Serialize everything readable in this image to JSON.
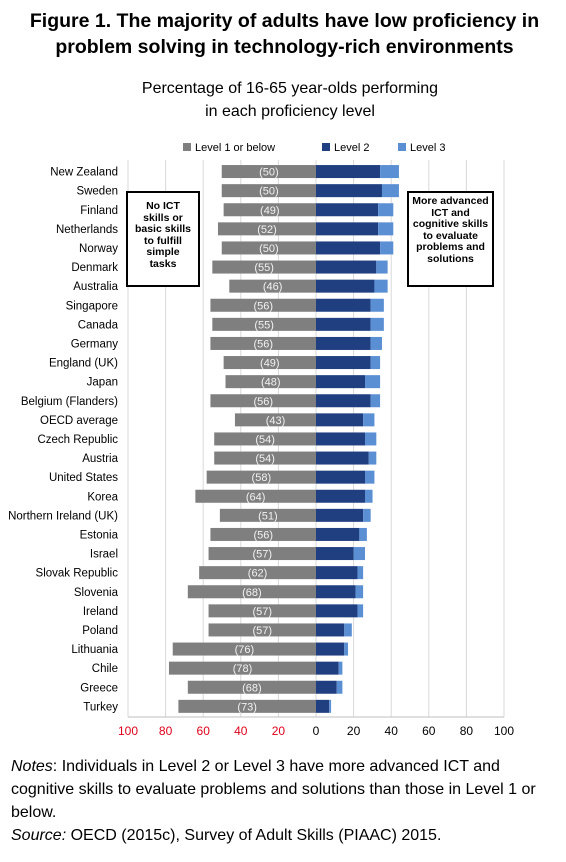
{
  "title": "Figure 1. The majority of adults have low proficiency in problem solving in technology-rich environments",
  "subtitle_line1": "Percentage of 16-65 year-olds performing",
  "subtitle_line2": "in each proficiency level",
  "callouts": {
    "left": "No ICT skills or basic skills to fulfill simple tasks",
    "right": "More advanced ICT and cognitive skills to evaluate problems and solutions"
  },
  "notes": {
    "label": "Notes",
    "text": ": Individuals in Level 2 or Level 3 have more advanced ICT and cognitive skills to evaluate problems and solutions than those in Level 1 or below."
  },
  "source": {
    "label": "Source:",
    "text": " OECD (2015c), Survey of Adult Skills (PIAAC) 2015."
  },
  "colors": {
    "level1": "#7f7f7f",
    "level2": "#1f3f80",
    "level3": "#5b8fd4",
    "left_ticks": "#e0001b"
  },
  "chart_data": {
    "type": "bar",
    "orientation": "horizontal-diverging",
    "categories": [
      "New Zealand",
      "Sweden",
      "Finland",
      "Netherlands",
      "Norway",
      "Denmark",
      "Australia",
      "Singapore",
      "Canada",
      "Germany",
      "England (UK)",
      "Japan",
      "Belgium (Flanders)",
      "OECD average",
      "Czech Republic",
      "Austria",
      "United States",
      "Korea",
      "Northern Ireland (UK)",
      "Estonia",
      "Israel",
      "Slovak Republic",
      "Slovenia",
      "Ireland",
      "Poland",
      "Lithuania",
      "Chile",
      "Greece",
      "Turkey"
    ],
    "series": [
      {
        "name": "Level 1 or below",
        "side": "left",
        "values": [
          50,
          50,
          49,
          52,
          50,
          55,
          46,
          56,
          55,
          56,
          49,
          48,
          56,
          43,
          54,
          54,
          58,
          64,
          51,
          56,
          57,
          62,
          68,
          57,
          57,
          76,
          78,
          68,
          73
        ]
      },
      {
        "name": "Level 2",
        "side": "right",
        "values": [
          34,
          35,
          33,
          33,
          34,
          32,
          31,
          29,
          29,
          29,
          29,
          26,
          29,
          25,
          26,
          28,
          26,
          26,
          25,
          23,
          20,
          22,
          21,
          22,
          15,
          15,
          12,
          11,
          7
        ]
      },
      {
        "name": "Level 3",
        "side": "right",
        "values": [
          10,
          9,
          8,
          8,
          7,
          6,
          7,
          7,
          7,
          6,
          5,
          8,
          5,
          6,
          6,
          4,
          5,
          4,
          4,
          4,
          6,
          3,
          4,
          3,
          4,
          2,
          2,
          3,
          1
        ]
      }
    ],
    "data_labels": [
      "(50)",
      "(50)",
      "(49)",
      "(52)",
      "(50)",
      "(55)",
      "(46)",
      "(56)",
      "(55)",
      "(56)",
      "(49)",
      "(48)",
      "(56)",
      "(43)",
      "(54)",
      "(54)",
      "(58)",
      "(64)",
      "(51)",
      "(56)",
      "(57)",
      "(62)",
      "(68)",
      "(57)",
      "(57)",
      "(76)",
      "(78)",
      "(68)",
      "(73)"
    ],
    "xticks": [
      "100",
      "80",
      "60",
      "40",
      "20",
      "0",
      "20",
      "40",
      "60",
      "80",
      "100"
    ],
    "xlim": [
      -100,
      100
    ],
    "legend_position": "top",
    "grid": "vertical"
  }
}
